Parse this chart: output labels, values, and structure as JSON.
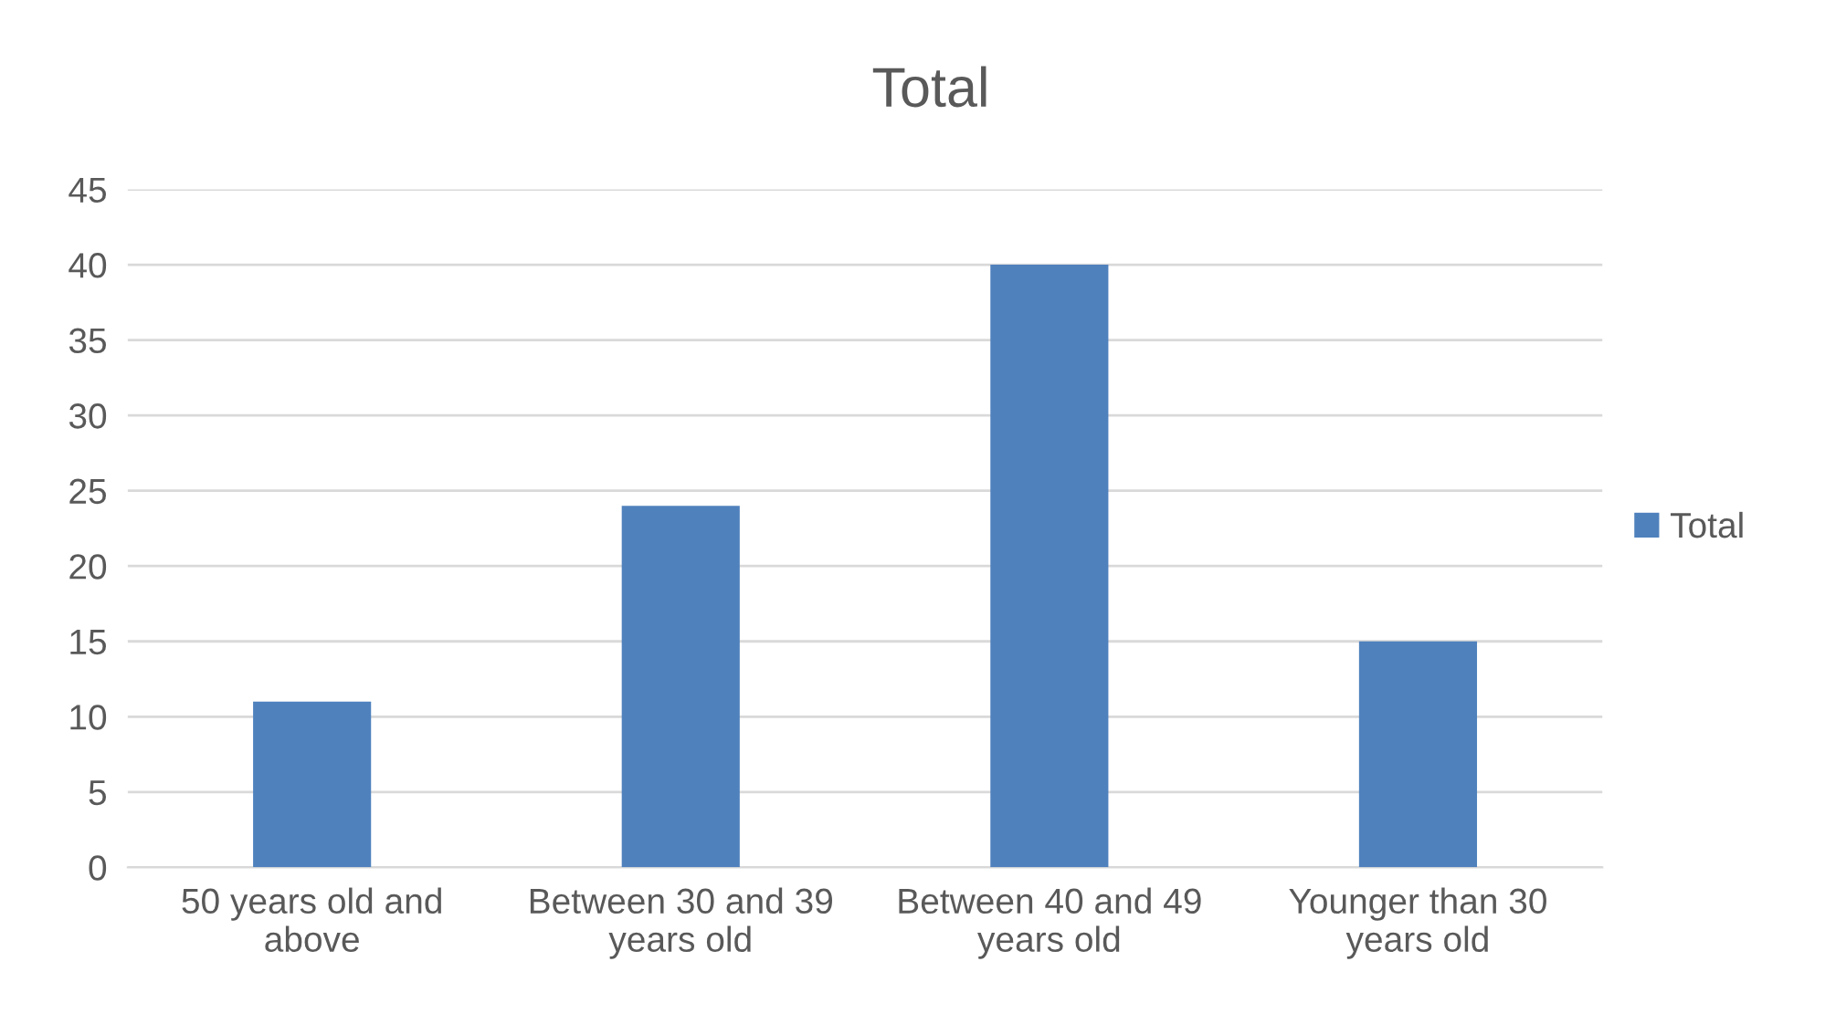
{
  "chart_data": {
    "type": "bar",
    "title": "Total",
    "categories": [
      "50 years old and above",
      "Between 30 and 39 years old",
      "Between 40 and 49 years old",
      "Younger than 30 years old"
    ],
    "series": [
      {
        "name": "Total",
        "color": "#4f81bd",
        "values": [
          11,
          24,
          40,
          15
        ]
      }
    ],
    "ylim": [
      0,
      45
    ],
    "yticks": [
      0,
      5,
      10,
      15,
      20,
      25,
      30,
      35,
      40,
      45
    ],
    "grid": "y",
    "legend": "right"
  }
}
